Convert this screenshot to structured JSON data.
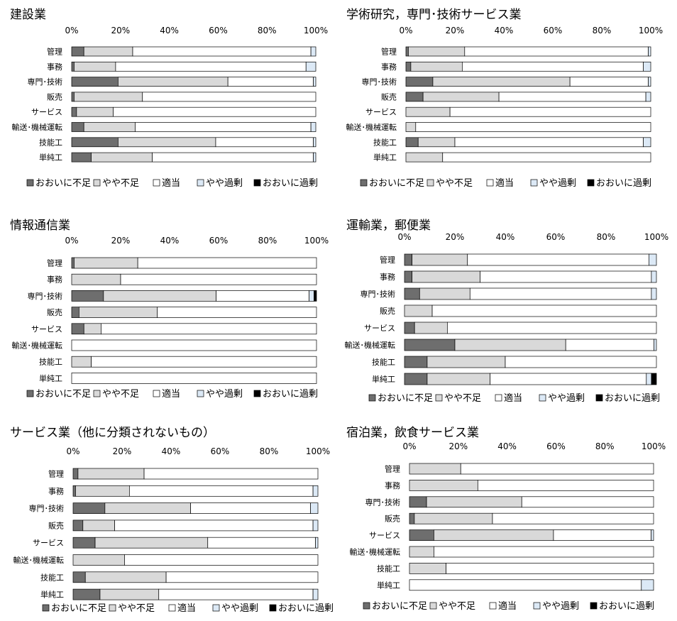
{
  "colors": {
    "oi_fusoku": "#6e6e6e",
    "yaya_fusoku": "#d9d9d9",
    "tekito": "#ffffff",
    "yaya_kajo": "#dce9f6",
    "oi_kajo": "#000000"
  },
  "legend_labels": [
    "おおいに不足",
    "やや不足",
    "適当",
    "やや過剰",
    "おおいに過剰"
  ],
  "chart_data": [
    {
      "type": "bar",
      "stacked": "horizontal-100",
      "title": "建設業",
      "xticks": [
        "0%",
        "20%",
        "40%",
        "60%",
        "80%",
        "100%"
      ],
      "xlim": [
        0,
        100
      ],
      "legend_position": "bottom",
      "categories": [
        "管理",
        "事務",
        "専門･技術",
        "販売",
        "サービス",
        "輸送･機械運転",
        "技能工",
        "単純工"
      ],
      "series": [
        {
          "name": "おおいに不足",
          "values": [
            5,
            1,
            19,
            1,
            2,
            5,
            19,
            8
          ]
        },
        {
          "name": "やや不足",
          "values": [
            20,
            17,
            45,
            28,
            15,
            21,
            40,
            25
          ]
        },
        {
          "name": "適当",
          "values": [
            73,
            78,
            35,
            71,
            83,
            72,
            40,
            66
          ]
        },
        {
          "name": "やや過剰",
          "values": [
            2,
            4,
            1,
            0,
            0,
            2,
            1,
            1
          ]
        },
        {
          "name": "おおいに過剰",
          "values": [
            0,
            0,
            0,
            0,
            0,
            0,
            0,
            0
          ]
        }
      ]
    },
    {
      "type": "bar",
      "stacked": "horizontal-100",
      "title": "学術研究，専門･技術サービス業",
      "xticks": [
        "0%",
        "20%",
        "40%",
        "60%",
        "80%",
        "100%"
      ],
      "xlim": [
        0,
        100
      ],
      "legend_position": "bottom",
      "categories": [
        "管理",
        "事務",
        "専門･技術",
        "販売",
        "サービス",
        "輸送･機械運転",
        "技能工",
        "単純工"
      ],
      "series": [
        {
          "name": "おおいに不足",
          "values": [
            1,
            2,
            11,
            7,
            0,
            0,
            5,
            0
          ]
        },
        {
          "name": "やや不足",
          "values": [
            23,
            21,
            56,
            31,
            18,
            4,
            15,
            15
          ]
        },
        {
          "name": "適当",
          "values": [
            75,
            74,
            32,
            60,
            82,
            96,
            77,
            85
          ]
        },
        {
          "name": "やや過剰",
          "values": [
            1,
            3,
            1,
            2,
            0,
            0,
            3,
            0
          ]
        },
        {
          "name": "おおいに過剰",
          "values": [
            0,
            0,
            0,
            0,
            0,
            0,
            0,
            0
          ]
        }
      ]
    },
    {
      "type": "bar",
      "stacked": "horizontal-100",
      "title": "情報通信業",
      "xticks": [
        "0%",
        "20%",
        "40%",
        "60%",
        "80%",
        "100%"
      ],
      "xlim": [
        0,
        100
      ],
      "legend_position": "bottom",
      "categories": [
        "管理",
        "事務",
        "専門･技術",
        "販売",
        "サービス",
        "輸送･機械運転",
        "技能工",
        "単純工"
      ],
      "series": [
        {
          "name": "おおいに不足",
          "values": [
            1,
            0,
            13,
            3,
            5,
            0,
            0,
            0
          ]
        },
        {
          "name": "やや不足",
          "values": [
            26,
            20,
            46,
            32,
            7,
            0,
            8,
            0
          ]
        },
        {
          "name": "適当",
          "values": [
            73,
            80,
            38,
            65,
            88,
            100,
            92,
            100
          ]
        },
        {
          "name": "やや過剰",
          "values": [
            0,
            0,
            2,
            0,
            0,
            0,
            0,
            0
          ]
        },
        {
          "name": "おおいに過剰",
          "values": [
            0,
            0,
            1,
            0,
            0,
            0,
            0,
            0
          ]
        }
      ]
    },
    {
      "type": "bar",
      "stacked": "horizontal-100",
      "title": "運輸業，郵便業",
      "xticks": [
        "0%",
        "20%",
        "40%",
        "60%",
        "80%",
        "100%"
      ],
      "xlim": [
        0,
        100
      ],
      "legend_position": "bottom",
      "categories": [
        "管理",
        "事務",
        "専門･技術",
        "販売",
        "サービス",
        "輸送･機械運転",
        "技能工",
        "単純工"
      ],
      "series": [
        {
          "name": "おおいに不足",
          "values": [
            3,
            3,
            6,
            0,
            4,
            20,
            9,
            9
          ]
        },
        {
          "name": "やや不足",
          "values": [
            22,
            27,
            20,
            11,
            13,
            44,
            31,
            25
          ]
        },
        {
          "name": "適当",
          "values": [
            72,
            68,
            72,
            89,
            83,
            35,
            60,
            62
          ]
        },
        {
          "name": "やや過剰",
          "values": [
            3,
            2,
            2,
            0,
            0,
            1,
            0,
            2
          ]
        },
        {
          "name": "おおいに過剰",
          "values": [
            0,
            0,
            0,
            0,
            0,
            0,
            0,
            2
          ]
        }
      ]
    },
    {
      "type": "bar",
      "stacked": "horizontal-100",
      "title": "サービス業（他に分類されないもの）",
      "xticks": [
        "0%",
        "20%",
        "40%",
        "60%",
        "80%",
        "100%"
      ],
      "xlim": [
        0,
        100
      ],
      "legend_position": "bottom",
      "categories": [
        "管理",
        "事務",
        "専門･技術",
        "販売",
        "サービス",
        "輸送･機械運転",
        "技能工",
        "単純工"
      ],
      "series": [
        {
          "name": "おおいに不足",
          "values": [
            2,
            1,
            13,
            4,
            9,
            0,
            5,
            11
          ]
        },
        {
          "name": "やや不足",
          "values": [
            27,
            22,
            35,
            13,
            46,
            21,
            33,
            24
          ]
        },
        {
          "name": "適当",
          "values": [
            71,
            75,
            49,
            81,
            44,
            79,
            62,
            63
          ]
        },
        {
          "name": "やや過剰",
          "values": [
            0,
            2,
            3,
            2,
            1,
            0,
            0,
            2
          ]
        },
        {
          "name": "おおいに過剰",
          "values": [
            0,
            0,
            0,
            0,
            0,
            0,
            0,
            0
          ]
        }
      ]
    },
    {
      "type": "bar",
      "stacked": "horizontal-100",
      "title": "宿泊業，飲食サービス業",
      "xticks": [
        "0%",
        "20%",
        "40%",
        "60%",
        "80%",
        "100%"
      ],
      "xlim": [
        0,
        100
      ],
      "legend_position": "bottom",
      "categories": [
        "管理",
        "事務",
        "専門･技術",
        "販売",
        "サービス",
        "輸送･機械運転",
        "技能工",
        "単純工"
      ],
      "series": [
        {
          "name": "おおいに不足",
          "values": [
            0,
            0,
            7,
            2,
            10,
            0,
            0,
            0
          ]
        },
        {
          "name": "やや不足",
          "values": [
            21,
            28,
            39,
            32,
            49,
            10,
            15,
            0
          ]
        },
        {
          "name": "適当",
          "values": [
            79,
            72,
            54,
            66,
            40,
            90,
            85,
            95
          ]
        },
        {
          "name": "やや過剰",
          "values": [
            0,
            0,
            0,
            0,
            1,
            0,
            0,
            5
          ]
        },
        {
          "name": "おおいに過剰",
          "values": [
            0,
            0,
            0,
            0,
            0,
            0,
            0,
            0
          ]
        }
      ]
    }
  ]
}
